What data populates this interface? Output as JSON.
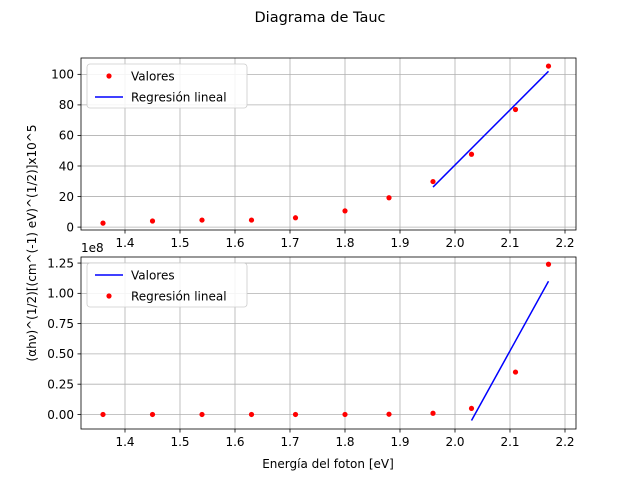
{
  "figure": {
    "title": "Diagrama de Tauc",
    "ylabel": "(αhν)^(1/2)[(cm^(-1) eV)^(1/2)]x10^5",
    "xlabel": "Energía del foton [eV]"
  },
  "chart_data": [
    {
      "type": "scatter",
      "grid": true,
      "legend_position": "top-left",
      "xlim": [
        1.32,
        2.22
      ],
      "ylim": [
        -1.9,
        110.7
      ],
      "x_ticks": [
        1.4,
        1.5,
        1.6,
        1.7,
        1.8,
        1.9,
        2.0,
        2.1,
        2.2
      ],
      "x_tick_labels": [
        "1.4",
        "1.5",
        "1.6",
        "1.7",
        "1.8",
        "1.9",
        "2.0",
        "2.1",
        "2.2"
      ],
      "y_ticks": [
        0,
        20,
        40,
        60,
        80,
        100
      ],
      "y_tick_labels": [
        "0",
        "20",
        "40",
        "60",
        "80",
        "100"
      ],
      "offset_text": "",
      "series": [
        {
          "name": "Valores",
          "style": "points",
          "color": "#ff0000",
          "x": [
            1.36,
            1.45,
            1.54,
            1.63,
            1.71,
            1.8,
            1.88,
            1.96,
            2.03,
            2.11,
            2.17
          ],
          "y": [
            2.6,
            4.0,
            4.6,
            4.6,
            6.1,
            10.6,
            19.2,
            29.8,
            47.7,
            77.0,
            105.4
          ]
        },
        {
          "name": "Regresión lineal",
          "style": "line",
          "color": "#0000ff",
          "x": [
            1.96,
            2.17
          ],
          "y": [
            26.2,
            102.0
          ]
        }
      ]
    },
    {
      "type": "scatter",
      "grid": true,
      "legend_position": "top-left",
      "xlim": [
        1.32,
        2.22
      ],
      "ylim": [
        -0.12,
        1.3
      ],
      "x_ticks": [
        1.4,
        1.5,
        1.6,
        1.7,
        1.8,
        1.9,
        2.0,
        2.1,
        2.2
      ],
      "x_tick_labels": [
        "1.4",
        "1.5",
        "1.6",
        "1.7",
        "1.8",
        "1.9",
        "2.0",
        "2.1",
        "2.2"
      ],
      "y_ticks": [
        0.0,
        0.25,
        0.5,
        0.75,
        1.0,
        1.25
      ],
      "y_tick_labels": [
        "0.00",
        "0.25",
        "0.50",
        "0.75",
        "1.00",
        "1.25"
      ],
      "offset_text": "1e8",
      "series": [
        {
          "name": "Valores",
          "style": "line",
          "color": "#0000ff",
          "x": [
            2.03,
            2.17
          ],
          "y": [
            -0.05,
            1.1
          ]
        },
        {
          "name": "Regresión lineal",
          "style": "points",
          "color": "#ff0000",
          "x": [
            1.36,
            1.45,
            1.54,
            1.63,
            1.71,
            1.8,
            1.88,
            1.96,
            2.03,
            2.11,
            2.17
          ],
          "y": [
            0.0,
            0.0,
            0.0,
            0.0,
            0.0,
            0.0,
            0.002,
            0.01,
            0.05,
            0.35,
            1.24
          ]
        }
      ]
    }
  ]
}
